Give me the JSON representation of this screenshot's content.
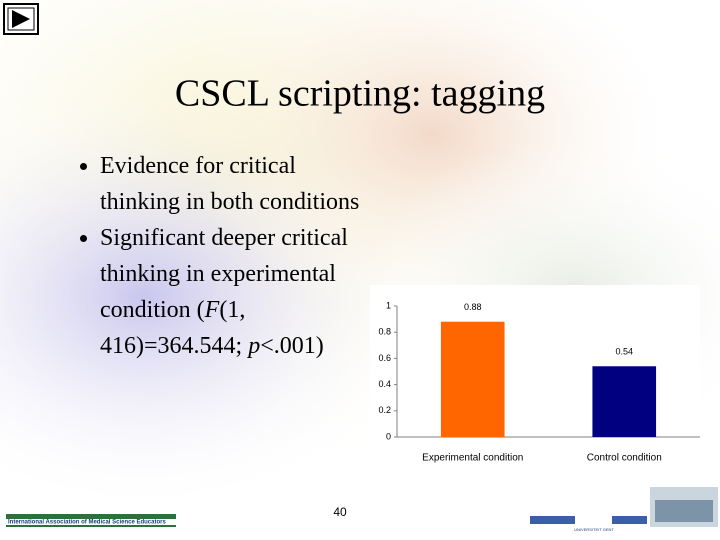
{
  "header": {
    "title": "CSCL scripting: tagging"
  },
  "bullets": [
    {
      "segments": [
        {
          "text": "Evidence for critical thinking in both conditions"
        }
      ]
    },
    {
      "segments": [
        {
          "text": "Significant deeper critical thinking in experimental condition ("
        },
        {
          "text": "F",
          "italic": true
        },
        {
          "text": "(1, 416)=364.544; "
        },
        {
          "text": "p",
          "italic": true
        },
        {
          "text": "<.001)"
        }
      ]
    }
  ],
  "chart_data": {
    "type": "bar",
    "categories": [
      "Experimental condition",
      "Control condition"
    ],
    "values": [
      0.88,
      0.54
    ],
    "colors": [
      "#ff6600",
      "#000080"
    ],
    "ylim": [
      0,
      1
    ],
    "yticks": [
      0,
      0.2,
      0.4,
      0.6,
      0.8,
      1
    ],
    "grid": false
  },
  "footer": {
    "page_number": "40",
    "organization": "International Association of Medical Science Educators",
    "university": "UNIVERSITEIT GENT"
  }
}
